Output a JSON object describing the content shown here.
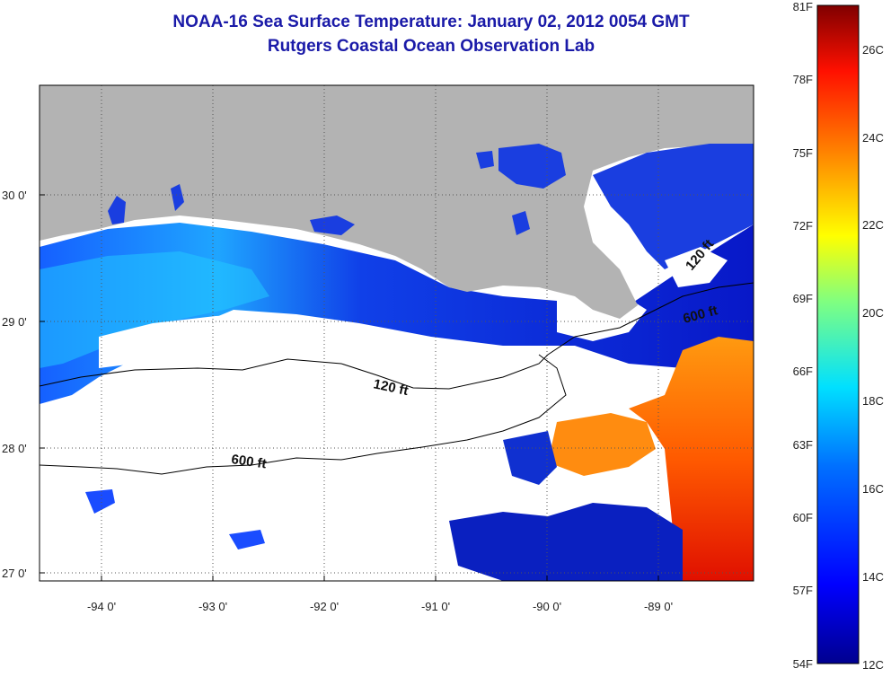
{
  "header": {
    "title": "NOAA-16 Sea Surface Temperature:  January 02, 2012 0054 GMT",
    "subtitle": "Rutgers Coastal Ocean Observation Lab"
  },
  "map": {
    "lat_labels": [
      "30 0'",
      "29 0'",
      "28 0'",
      "27 0'"
    ],
    "lon_labels": [
      "-94 0'",
      "-93 0'",
      "-92 0'",
      "-91 0'",
      "-90 0'",
      "-89 0'"
    ],
    "contours": [
      "120 ft",
      "600 ft",
      "600 ft",
      "120 ft"
    ],
    "colors": {
      "land": "#b3b3b3",
      "cloud": "#ffffff"
    }
  },
  "colorbar": {
    "f_labels": [
      "81F",
      "78F",
      "75F",
      "72F",
      "69F",
      "66F",
      "63F",
      "60F",
      "57F",
      "54F"
    ],
    "c_labels": [
      "26C",
      "24C",
      "22C",
      "20C",
      "18C",
      "16C",
      "14C",
      "12C"
    ],
    "colors": [
      "#00008f",
      "#0000ff",
      "#00a0ff",
      "#00ffff",
      "#ffff00",
      "#ff8000",
      "#ff0000",
      "#800000"
    ]
  }
}
